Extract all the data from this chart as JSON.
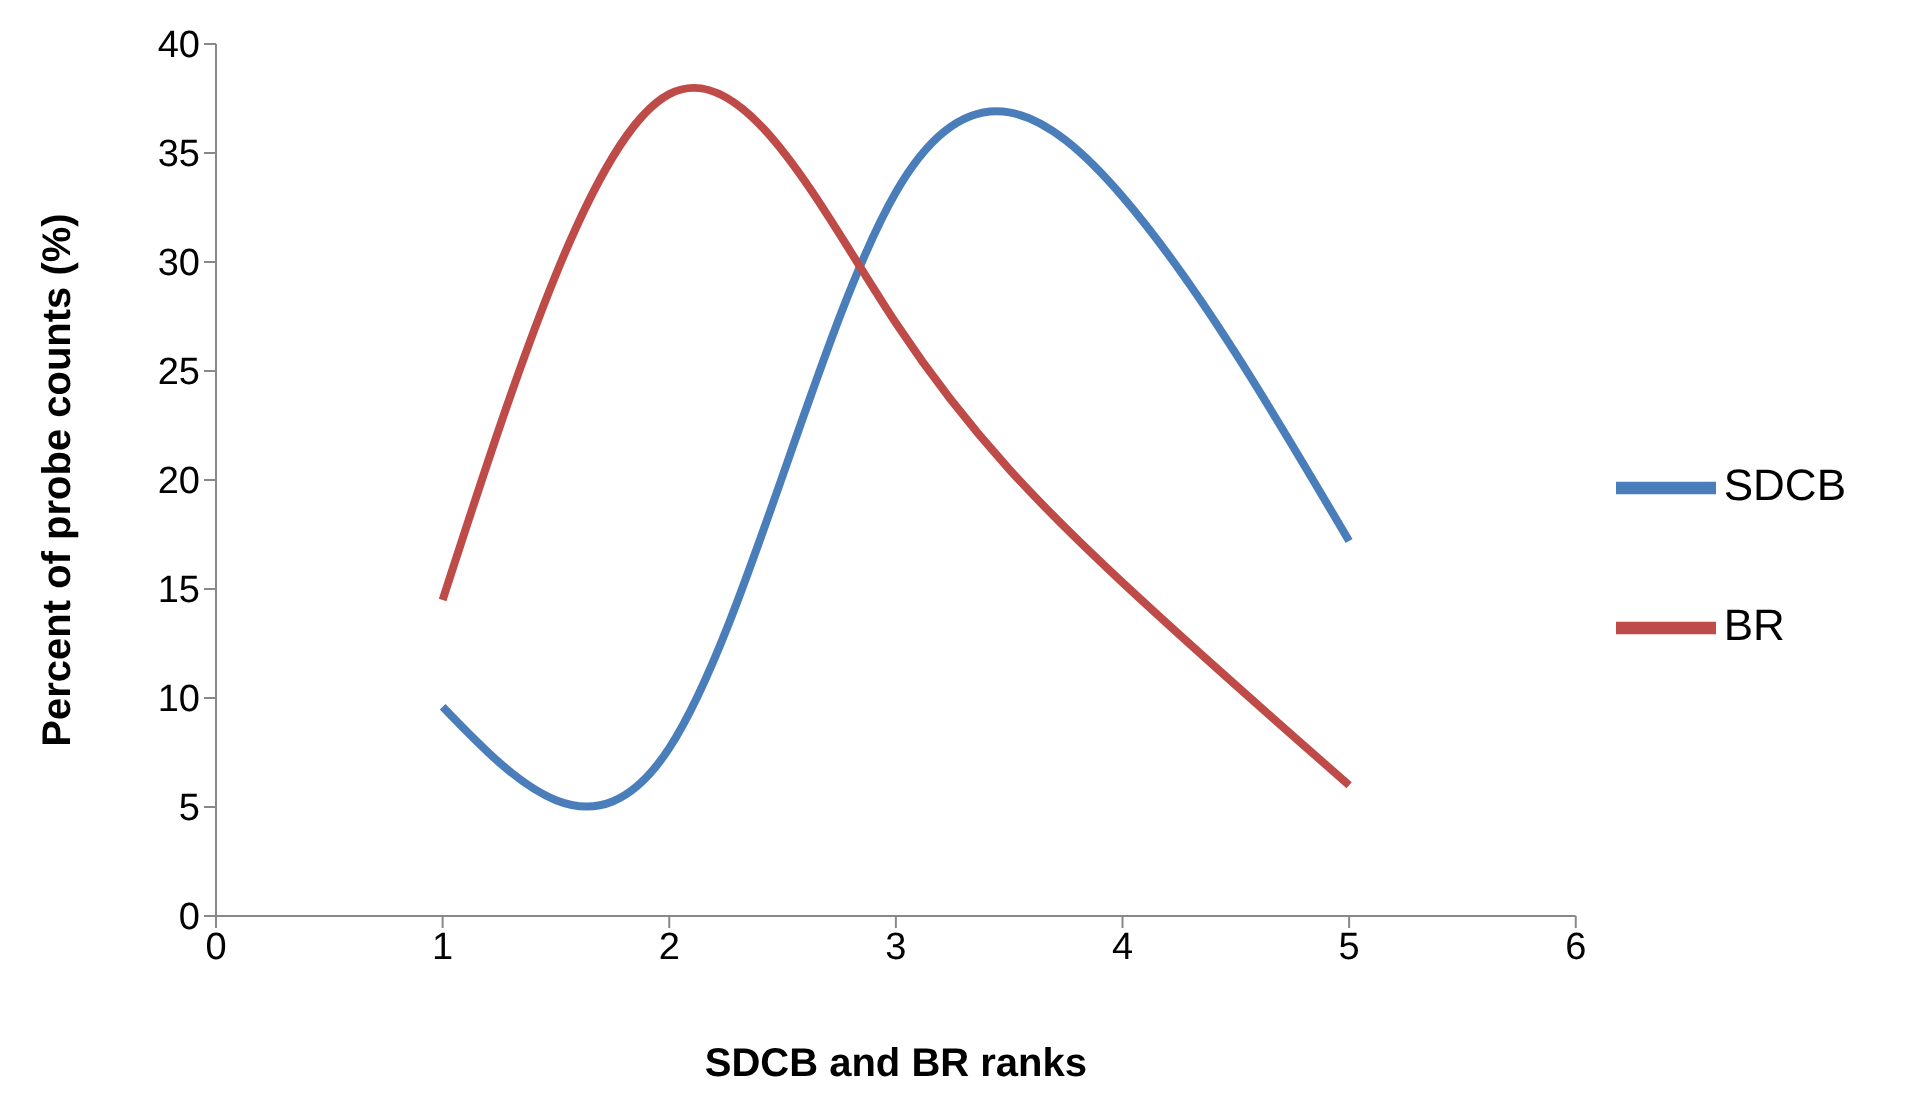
{
  "chart_data": {
    "type": "line",
    "xlabel": "SDCB and BR ranks",
    "ylabel": "Percent of probe counts (%)",
    "x": [
      1,
      2,
      3,
      4,
      5
    ],
    "series": [
      {
        "name": "SDCB",
        "color": "#4a7ebb",
        "values": [
          9.6,
          7.7,
          33.2,
          33,
          17.2
        ]
      },
      {
        "name": "BR",
        "color": "#be4b48",
        "values": [
          14.5,
          37.7,
          27.2,
          15.3,
          6
        ]
      }
    ],
    "xlim": [
      0,
      6
    ],
    "xticks": [
      0,
      1,
      2,
      3,
      4,
      5,
      6
    ],
    "ylim": [
      0,
      40
    ],
    "yticks": [
      0,
      5,
      10,
      15,
      20,
      25,
      30,
      35,
      40
    ],
    "grid": false,
    "legend": "right",
    "marker": "none",
    "line_style": "solid"
  }
}
